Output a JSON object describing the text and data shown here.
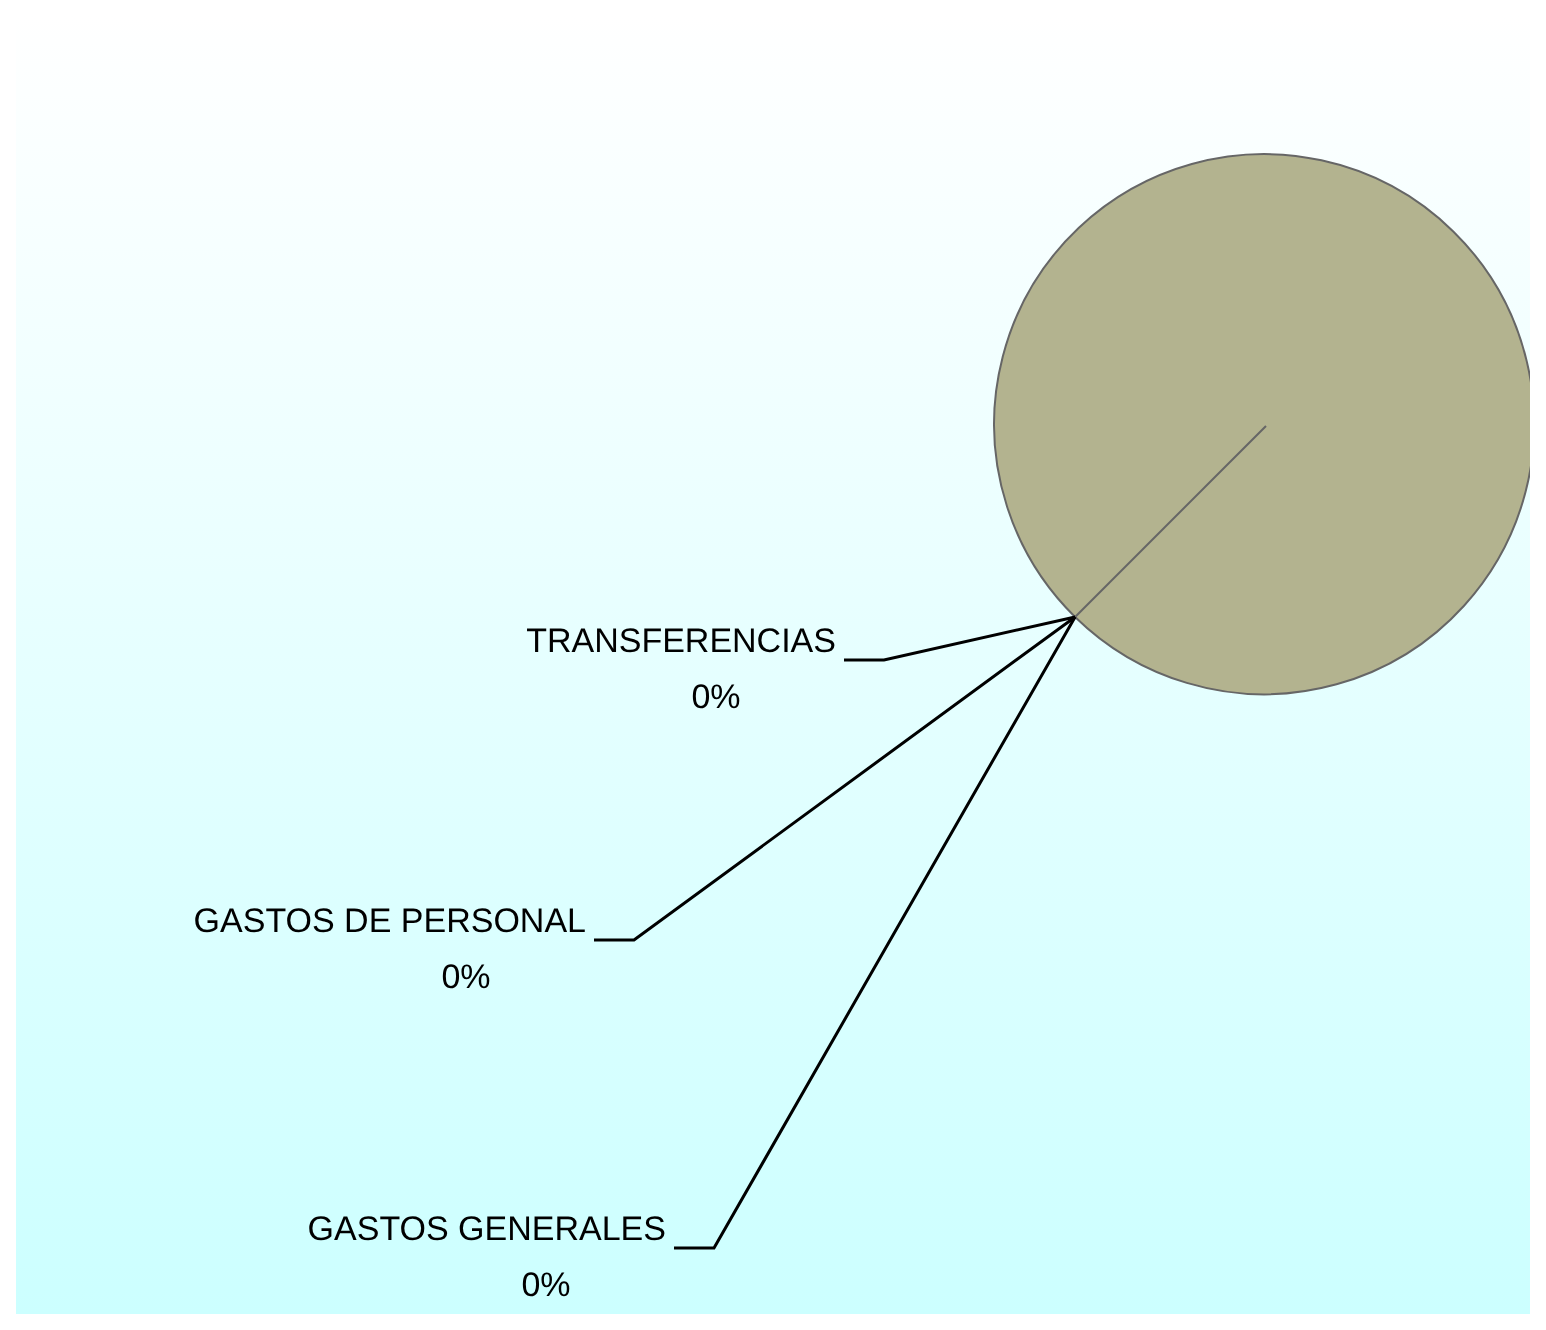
{
  "chart_data": {
    "type": "pie",
    "categories": [
      "TRANSFERENCIAS",
      "GASTOS DE PERSONAL",
      "GASTOS GENERALES",
      null
    ],
    "values": [
      0,
      0,
      0,
      100
    ],
    "colors": [
      "#8f8fb3",
      "#b38f8f",
      "#8fb38f",
      "#b3b38f"
    ],
    "value_labels": [
      "0%",
      "0%",
      "0%",
      null
    ]
  }
}
